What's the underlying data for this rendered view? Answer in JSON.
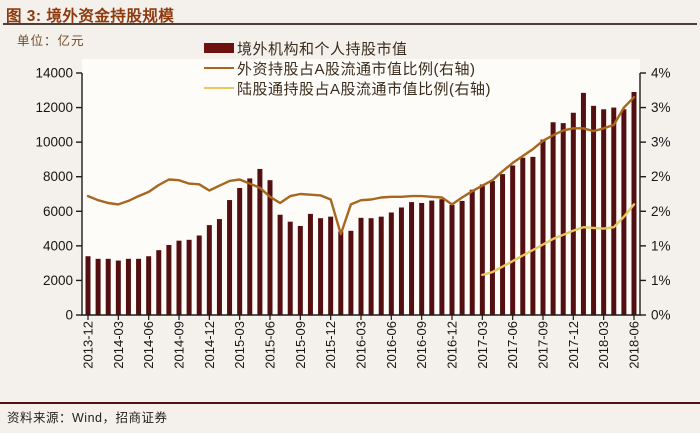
{
  "header": {
    "title": "图 3: 境外资金持股规模",
    "unit_label": "单位：亿元"
  },
  "legend": {
    "items": [
      {
        "label": "境外机构和个人持股市值",
        "swatch": "bar",
        "color": "#6e1010"
      },
      {
        "label": "外资持股占A股流通市值比例(右轴)",
        "swatch": "line",
        "color": "#a8661e"
      },
      {
        "label": "陆股通持股占A股流通市值比例(右轴)",
        "swatch": "line",
        "color": "#e8c75e"
      }
    ]
  },
  "footer": {
    "source": "资料来源：Wind，招商证券"
  },
  "colors": {
    "bar": "#540f10",
    "foreign_ratio_line": "#a8661e",
    "connect_ratio_line": "#e8c75e",
    "axis": "#1c1c1c",
    "plot_background": "#fdfcf9"
  },
  "chart_data": {
    "type": "bar",
    "subtype": "combo: monthly bars (left axis) + 2 ratio lines (right axis)",
    "title": "境外资金持股规模",
    "unit": "亿元",
    "frequency": "monthly",
    "x_start": "2013-12",
    "x_end": "2018-06",
    "x_tick_labels": [
      "2013-12",
      "2014-03",
      "2014-06",
      "2014-09",
      "2014-12",
      "2015-03",
      "2015-06",
      "2015-09",
      "2015-12",
      "2016-03",
      "2016-06",
      "2016-09",
      "2016-12",
      "2017-03",
      "2017-06",
      "2017-09",
      "2017-12",
      "2018-03",
      "2018-06"
    ],
    "left_axis": {
      "min": 0,
      "max": 14000,
      "step": 2000,
      "tick_labels": [
        "0",
        "2000",
        "4000",
        "6000",
        "8000",
        "10000",
        "12000",
        "14000"
      ]
    },
    "right_axis": {
      "min": 0,
      "max": 3.5,
      "step": 0.5,
      "tick_labels_bottom_to_top": [
        "0%",
        "1%",
        "1%",
        "2%",
        "2%",
        "3%",
        "3%",
        "4%"
      ]
    },
    "grid": false,
    "legend_position": "top-center",
    "series": [
      {
        "name": "境外机构和个人持股市值",
        "type": "bar",
        "axis": "left",
        "values": [
          3400,
          3250,
          3250,
          3150,
          3250,
          3250,
          3400,
          3750,
          4050,
          4300,
          4350,
          4600,
          5200,
          5550,
          6650,
          7350,
          7900,
          8450,
          7800,
          5800,
          5400,
          5150,
          5850,
          5600,
          5690,
          4830,
          4870,
          5620,
          5600,
          5690,
          5930,
          6220,
          6530,
          6480,
          6620,
          6700,
          6370,
          6600,
          7250,
          7550,
          7750,
          8150,
          8650,
          9100,
          9150,
          10150,
          11150,
          11100,
          11700,
          12850,
          12100,
          11900,
          12000,
          11900,
          12900
        ]
      },
      {
        "name": "外资持股占A股流通市值比例(右轴)",
        "type": "line",
        "axis": "right",
        "values": [
          1.72,
          1.66,
          1.62,
          1.6,
          1.65,
          1.72,
          1.78,
          1.88,
          1.96,
          1.95,
          1.9,
          1.89,
          1.8,
          1.87,
          1.94,
          1.96,
          1.9,
          1.84,
          1.71,
          1.62,
          1.72,
          1.75,
          1.74,
          1.73,
          1.67,
          1.17,
          1.6,
          1.66,
          1.67,
          1.7,
          1.71,
          1.71,
          1.72,
          1.72,
          1.71,
          1.7,
          1.6,
          1.7,
          1.79,
          1.87,
          1.95,
          2.08,
          2.2,
          2.3,
          2.4,
          2.52,
          2.6,
          2.67,
          2.7,
          2.7,
          2.66,
          2.7,
          2.75,
          3.0,
          3.15
        ]
      },
      {
        "name": "陆股通持股占A股流通市值比例(右轴)",
        "type": "line",
        "axis": "right",
        "values": [
          null,
          null,
          null,
          null,
          null,
          null,
          null,
          null,
          null,
          null,
          null,
          null,
          null,
          null,
          null,
          null,
          null,
          null,
          null,
          null,
          null,
          null,
          null,
          null,
          null,
          null,
          null,
          null,
          null,
          null,
          null,
          null,
          null,
          null,
          null,
          null,
          null,
          null,
          null,
          0.58,
          0.62,
          0.7,
          0.78,
          0.86,
          0.94,
          1.02,
          1.1,
          1.16,
          1.22,
          1.27,
          1.26,
          1.25,
          1.27,
          1.42,
          1.6
        ]
      }
    ]
  }
}
